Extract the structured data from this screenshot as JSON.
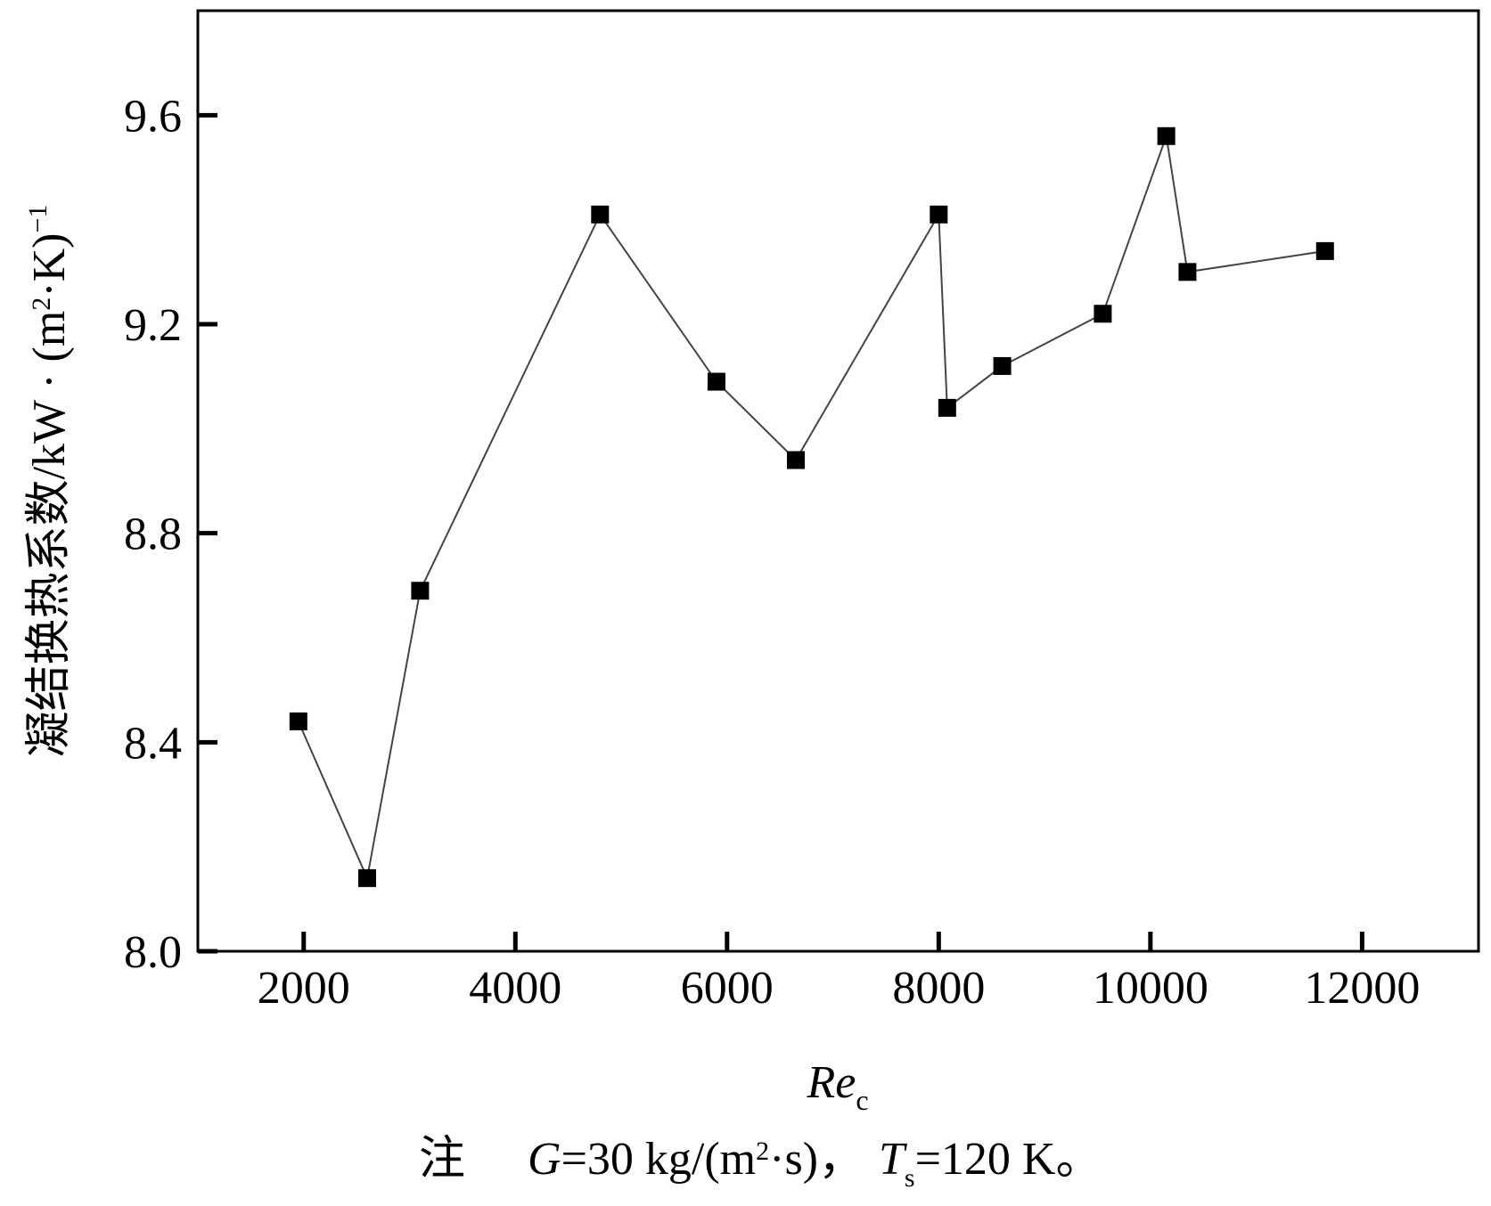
{
  "chart_data": {
    "type": "line",
    "series": [
      {
        "x": [
          1950,
          2600,
          3100,
          4800,
          5900,
          6650,
          8000,
          8080,
          8600,
          9550,
          10150,
          10350,
          11650
        ],
        "y": [
          8.44,
          8.14,
          8.69,
          9.41,
          9.09,
          8.94,
          9.41,
          9.04,
          9.12,
          9.22,
          9.56,
          9.3,
          9.34
        ],
        "marker": "filled-square",
        "color": "#000000",
        "line_color": "#444444"
      }
    ],
    "xlim": [
      1000,
      13100
    ],
    "ylim": [
      8.0,
      9.8
    ],
    "xticks": [
      "2000",
      "4000",
      "6000",
      "8000",
      "10000",
      "12000"
    ],
    "xtick_values": [
      2000,
      4000,
      6000,
      8000,
      10000,
      12000
    ],
    "yticks": [
      "8.0",
      "8.4",
      "8.8",
      "9.2",
      "9.6"
    ],
    "ytick_values": [
      8.0,
      8.4,
      8.8,
      9.2,
      9.6
    ],
    "xlabel": {
      "main": "Re",
      "sub": "c"
    },
    "ylabel": {
      "main": "凝结换热系数/kW · (m",
      "sup2": "2",
      "mid": "·K)",
      "sup": "−1"
    },
    "note": {
      "prefix": "注",
      "g_symbol": "G",
      "g_text": "=30 kg/(m",
      "g_sup": "2",
      "g_tail": "·s)，",
      "t_symbol": "T",
      "t_sub": "s",
      "t_text": "=120 K。"
    },
    "grid": false
  }
}
